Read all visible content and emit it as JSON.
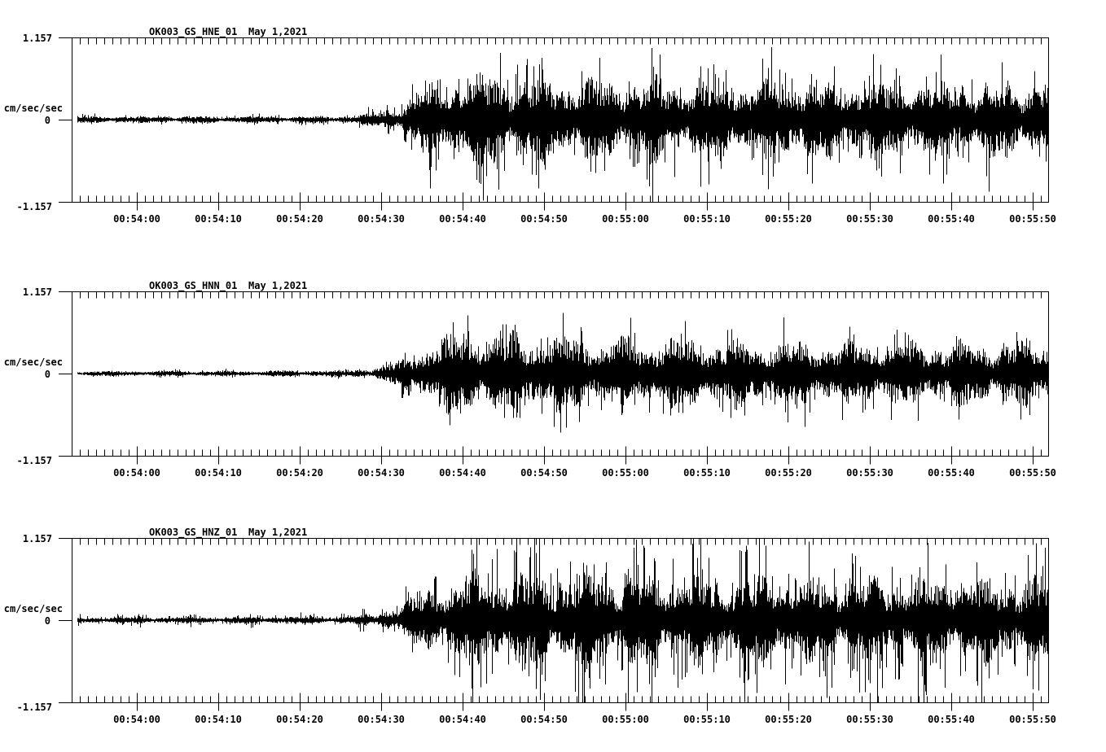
{
  "page": {
    "background_color": "#ffffff",
    "trace_color": "#000000"
  },
  "chart_data": {
    "type": "line",
    "subtype": "seismogram-multipanel",
    "description": "Three-component strong-motion seismogram record, vertical min/max trace plot, black on white",
    "x_window": {
      "start_time": "00:53:52",
      "end_time": "00:55:52",
      "duration_sec": 120,
      "major_tick_sec": 10,
      "minor_tick_sec": 1
    },
    "x_tick_labels": [
      "00:54:00",
      "00:54:10",
      "00:54:20",
      "00:54:30",
      "00:54:40",
      "00:54:50",
      "00:55:00",
      "00:55:10",
      "00:55:20",
      "00:55:30",
      "00:55:40",
      "00:55:50"
    ],
    "grid": "off",
    "legend": "none",
    "panels": [
      {
        "station_channel": "OK003_GS_HNE_01",
        "date": "May 1,2021",
        "units": "cm/sec/sec",
        "y_max_label": "1.157",
        "y_zero_label": "0",
        "y_min_label": "-1.157",
        "ylim": [
          -1.157,
          1.157
        ],
        "envelope_amp_vs_sec": [
          [
            0,
            0.038
          ],
          [
            20,
            0.04
          ],
          [
            34,
            0.044
          ],
          [
            37,
            0.075
          ],
          [
            40,
            0.16
          ],
          [
            43,
            0.33
          ],
          [
            46,
            0.46
          ],
          [
            49,
            0.52
          ],
          [
            55,
            0.5
          ],
          [
            65,
            0.47
          ],
          [
            80,
            0.45
          ],
          [
            95,
            0.43
          ],
          [
            110,
            0.41
          ],
          [
            120,
            0.42
          ]
        ],
        "spike_ratio": 1.85,
        "spike_prob": 0.1,
        "seed": 7
      },
      {
        "station_channel": "OK003_GS_HNN_01",
        "date": "May 1,2021",
        "units": "cm/sec/sec",
        "y_max_label": "1.157",
        "y_zero_label": "0",
        "y_min_label": "-1.157",
        "ylim": [
          -1.157,
          1.157
        ],
        "envelope_amp_vs_sec": [
          [
            0,
            0.03
          ],
          [
            20,
            0.032
          ],
          [
            34,
            0.038
          ],
          [
            37,
            0.065
          ],
          [
            40,
            0.14
          ],
          [
            43,
            0.3
          ],
          [
            46,
            0.42
          ],
          [
            50,
            0.46
          ],
          [
            56,
            0.44
          ],
          [
            70,
            0.4
          ],
          [
            85,
            0.37
          ],
          [
            100,
            0.35
          ],
          [
            120,
            0.36
          ]
        ],
        "spike_ratio": 1.7,
        "spike_prob": 0.09,
        "seed": 13
      },
      {
        "station_channel": "OK003_GS_HNZ_01",
        "date": "May 1,2021",
        "units": "cm/sec/sec",
        "y_max_label": "1.157",
        "y_zero_label": "0",
        "y_min_label": "-1.157",
        "ylim": [
          -1.157,
          1.157
        ],
        "envelope_amp_vs_sec": [
          [
            0,
            0.036
          ],
          [
            20,
            0.038
          ],
          [
            34,
            0.042
          ],
          [
            37,
            0.068
          ],
          [
            40,
            0.15
          ],
          [
            43,
            0.32
          ],
          [
            47,
            0.48
          ],
          [
            52,
            0.53
          ],
          [
            60,
            0.52
          ],
          [
            75,
            0.5
          ],
          [
            90,
            0.48
          ],
          [
            105,
            0.46
          ],
          [
            120,
            0.45
          ]
        ],
        "spike_ratio": 2.1,
        "spike_prob": 0.17,
        "seed": 29
      }
    ]
  }
}
